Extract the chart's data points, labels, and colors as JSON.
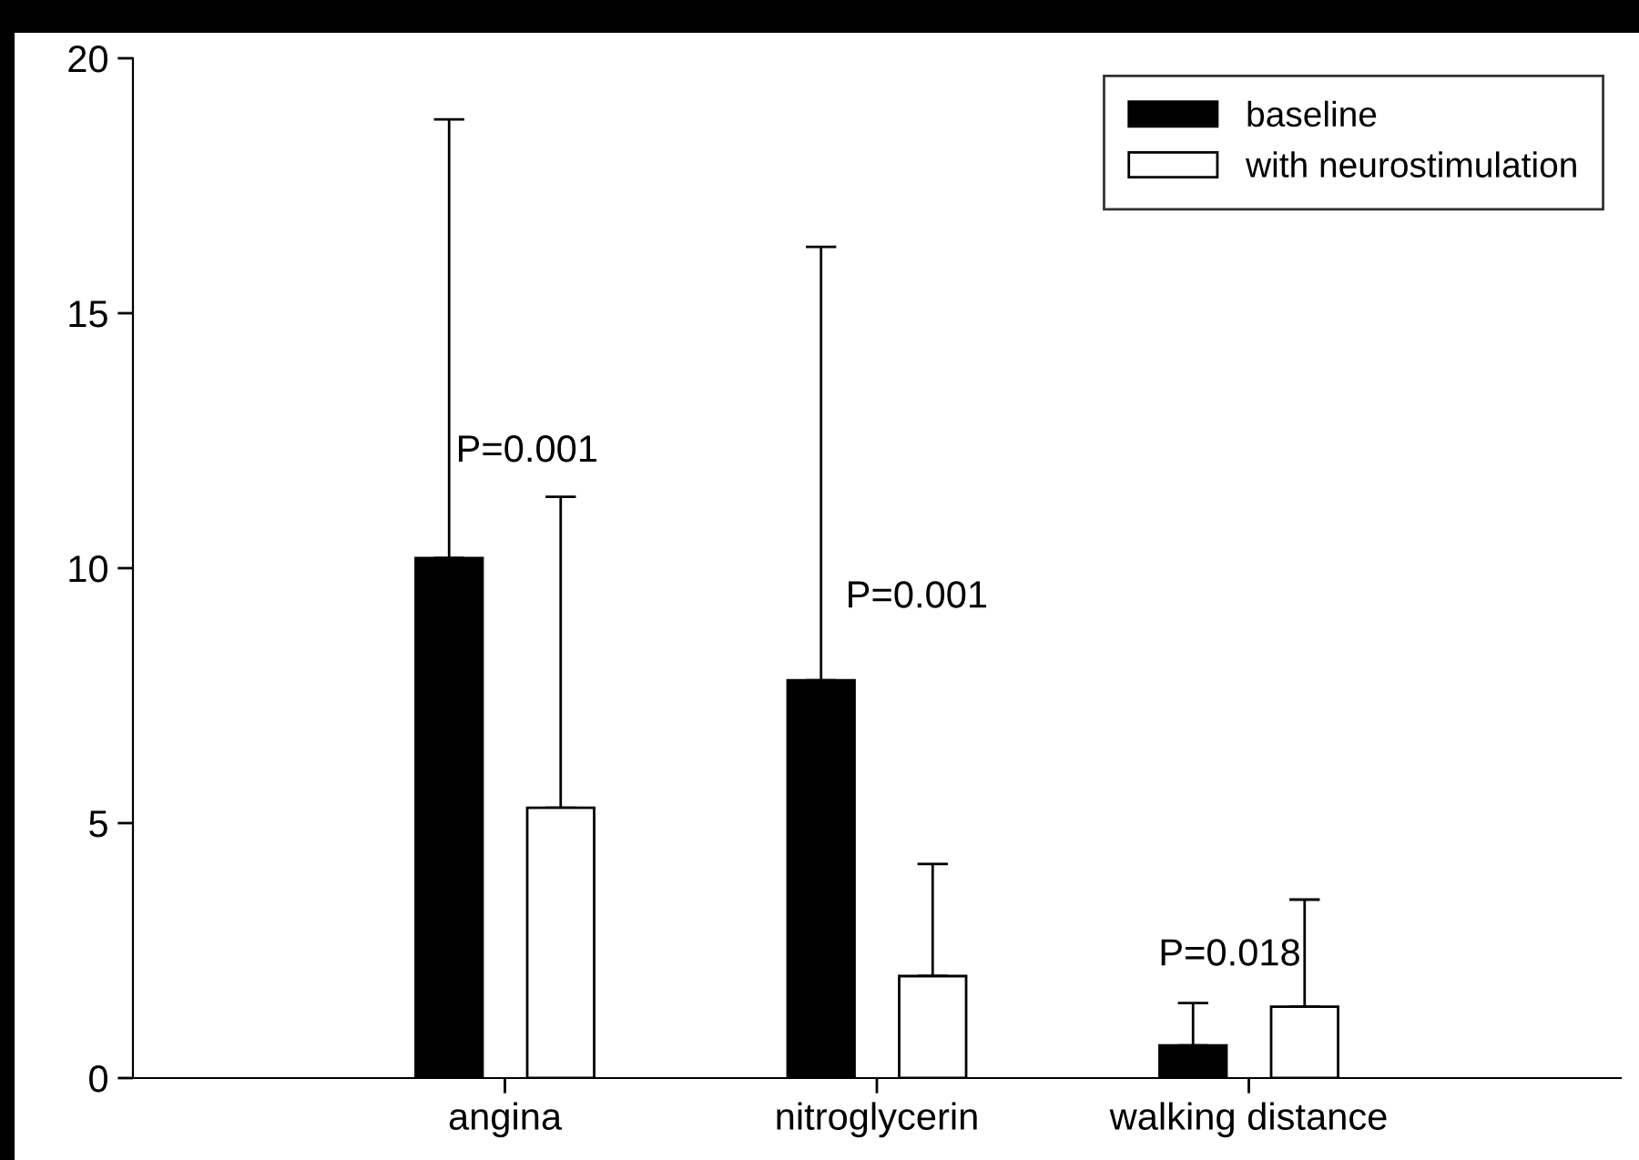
{
  "chart_data": {
    "type": "bar",
    "categories": [
      "angina",
      "nitroglycerin",
      "walking distance"
    ],
    "series": [
      {
        "name": "baseline",
        "color": "#000000",
        "values": [
          10.2,
          7.8,
          0.64
        ],
        "errors": [
          [
            10.2,
            18.8
          ],
          [
            7.8,
            16.3
          ],
          [
            0.64,
            1.47
          ]
        ]
      },
      {
        "name": "with neurostimulation",
        "color": "#ffffff",
        "values": [
          5.3,
          2.0,
          1.4
        ],
        "errors": [
          [
            5.3,
            11.4
          ],
          [
            2.0,
            4.2
          ],
          [
            1.4,
            3.5
          ]
        ]
      }
    ],
    "ylim": [
      0,
      20
    ],
    "yticks": [
      0,
      5,
      10,
      15,
      20
    ],
    "grid": false,
    "legend": "top right",
    "annotations": [
      "P=0.001",
      "P=0.001",
      "P=0.018"
    ]
  }
}
